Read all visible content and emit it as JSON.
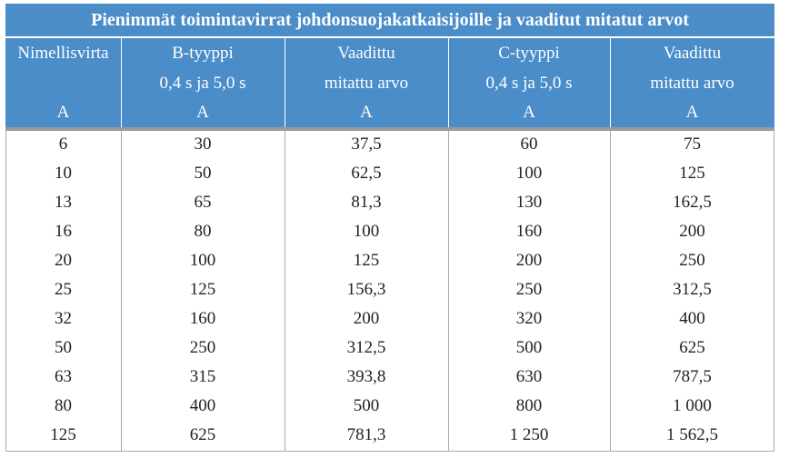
{
  "title": "Pienimmät toimintavirrat johdonsuojakatkaisijoille ja vaaditut mitatut arvot",
  "columns": [
    {
      "lines": [
        "Nimellisvirta"
      ],
      "unit": "A"
    },
    {
      "lines": [
        "B-tyyppi",
        "0,4 s ja 5,0 s"
      ],
      "unit": "A"
    },
    {
      "lines": [
        "Vaadittu",
        "mitattu arvo"
      ],
      "unit": "A"
    },
    {
      "lines": [
        "C-tyyppi",
        "0,4 s ja 5,0 s"
      ],
      "unit": "A"
    },
    {
      "lines": [
        "Vaadittu",
        "mitattu arvo"
      ],
      "unit": "A"
    }
  ],
  "rows": [
    [
      "6",
      "30",
      "37,5",
      "60",
      "75"
    ],
    [
      "10",
      "50",
      "62,5",
      "100",
      "125"
    ],
    [
      "13",
      "65",
      "81,3",
      "130",
      "162,5"
    ],
    [
      "16",
      "80",
      "100",
      "160",
      "200"
    ],
    [
      "20",
      "100",
      "125",
      "200",
      "250"
    ],
    [
      "25",
      "125",
      "156,3",
      "250",
      "312,5"
    ],
    [
      "32",
      "160",
      "200",
      "320",
      "400"
    ],
    [
      "50",
      "250",
      "312,5",
      "500",
      "625"
    ],
    [
      "63",
      "315",
      "393,8",
      "630",
      "787,5"
    ],
    [
      "80",
      "400",
      "500",
      "800",
      "1 000"
    ],
    [
      "125",
      "625",
      "781,3",
      "1 250",
      "1 562,5"
    ]
  ]
}
